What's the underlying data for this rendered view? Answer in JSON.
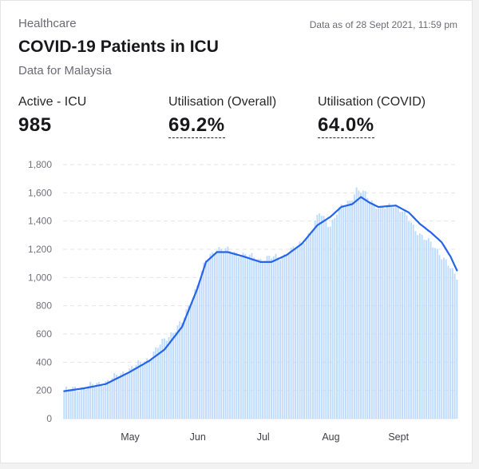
{
  "header": {
    "category": "Healthcare",
    "timestamp": "Data as of 28 Sept 2021, 11:59 pm",
    "title": "COVID-19 Patients in ICU",
    "subtitle": "Data for Malaysia"
  },
  "stats": [
    {
      "label": "Active - ICU",
      "value": "985"
    },
    {
      "label": "Utilisation (Overall)",
      "value": "69.2%"
    },
    {
      "label": "Utilisation (COVID)",
      "value": "64.0%"
    }
  ],
  "colors": {
    "bar": "#bfdbfe",
    "line": "#2563eb",
    "grid": "#e4e4e7",
    "text": "#18181b"
  },
  "chart_data": {
    "type": "bar",
    "series": [
      {
        "type": "bar",
        "values_note": "daily ICU patients"
      },
      {
        "type": "line",
        "values_note": "7-day average"
      }
    ],
    "x_start": "2021-04-01",
    "x_end": "2021-09-28",
    "xticks": [
      {
        "label": "May",
        "date": "2021-05-01"
      },
      {
        "label": "Jun",
        "date": "2021-06-01"
      },
      {
        "label": "Jul",
        "date": "2021-07-01"
      },
      {
        "label": "Aug",
        "date": "2021-08-01"
      },
      {
        "label": "Sept",
        "date": "2021-09-01"
      }
    ],
    "yticks": [
      "0",
      "200",
      "400",
      "600",
      "800",
      "1,000",
      "1,200",
      "1,400",
      "1,600",
      "1,800"
    ],
    "ylim": [
      0,
      1800
    ],
    "grid": true,
    "daily_keypoints": [
      [
        "2021-04-01",
        200
      ],
      [
        "2021-04-10",
        220
      ],
      [
        "2021-04-20",
        260
      ],
      [
        "2021-05-01",
        350
      ],
      [
        "2021-05-10",
        430
      ],
      [
        "2021-05-17",
        560
      ],
      [
        "2021-05-25",
        680
      ],
      [
        "2021-06-01",
        950
      ],
      [
        "2021-06-05",
        1120
      ],
      [
        "2021-06-10",
        1210
      ],
      [
        "2021-06-20",
        1170
      ],
      [
        "2021-06-30",
        1130
      ],
      [
        "2021-07-10",
        1150
      ],
      [
        "2021-07-17",
        1220
      ],
      [
        "2021-07-24",
        1340
      ],
      [
        "2021-07-27",
        1460
      ],
      [
        "2021-08-01",
        1370
      ],
      [
        "2021-08-05",
        1480
      ],
      [
        "2021-08-10",
        1550
      ],
      [
        "2021-08-13",
        1620
      ],
      [
        "2021-08-17",
        1590
      ],
      [
        "2021-08-24",
        1480
      ],
      [
        "2021-08-30",
        1520
      ],
      [
        "2021-09-03",
        1470
      ],
      [
        "2021-09-08",
        1360
      ],
      [
        "2021-09-13",
        1280
      ],
      [
        "2021-09-18",
        1210
      ],
      [
        "2021-09-22",
        1140
      ],
      [
        "2021-09-26",
        1040
      ],
      [
        "2021-09-28",
        985
      ]
    ],
    "average_keypoints": [
      [
        "2021-04-01",
        195
      ],
      [
        "2021-04-10",
        215
      ],
      [
        "2021-04-20",
        245
      ],
      [
        "2021-05-01",
        330
      ],
      [
        "2021-05-10",
        410
      ],
      [
        "2021-05-17",
        490
      ],
      [
        "2021-05-25",
        650
      ],
      [
        "2021-06-01",
        920
      ],
      [
        "2021-06-05",
        1110
      ],
      [
        "2021-06-10",
        1180
      ],
      [
        "2021-06-15",
        1180
      ],
      [
        "2021-06-22",
        1150
      ],
      [
        "2021-06-30",
        1110
      ],
      [
        "2021-07-05",
        1110
      ],
      [
        "2021-07-12",
        1160
      ],
      [
        "2021-07-19",
        1240
      ],
      [
        "2021-07-26",
        1370
      ],
      [
        "2021-08-01",
        1430
      ],
      [
        "2021-08-06",
        1500
      ],
      [
        "2021-08-11",
        1520
      ],
      [
        "2021-08-15",
        1570
      ],
      [
        "2021-08-19",
        1530
      ],
      [
        "2021-08-23",
        1500
      ],
      [
        "2021-08-31",
        1510
      ],
      [
        "2021-09-06",
        1460
      ],
      [
        "2021-09-11",
        1380
      ],
      [
        "2021-09-16",
        1320
      ],
      [
        "2021-09-21",
        1250
      ],
      [
        "2021-09-25",
        1150
      ],
      [
        "2021-09-28",
        1050
      ]
    ]
  }
}
